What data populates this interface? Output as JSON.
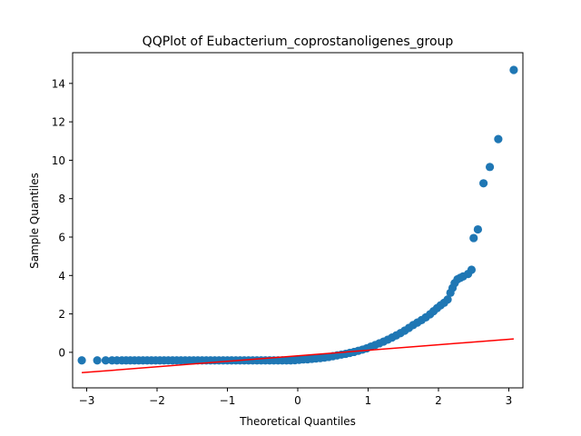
{
  "chart_data": {
    "type": "scatter",
    "title": "QQPlot of Eubacterium_coprostanoligenes_group",
    "xlabel": "Theoretical Quantiles",
    "ylabel": "Sample Quantiles",
    "xlim": [
      -3.2,
      3.2
    ],
    "ylim": [
      -1.85,
      15.6
    ],
    "xticks": [
      -3,
      -2,
      -1,
      0,
      1,
      2,
      3
    ],
    "xtick_labels": [
      "−3",
      "−2",
      "−1",
      "0",
      "1",
      "2",
      "3"
    ],
    "yticks": [
      0,
      2,
      4,
      6,
      8,
      10,
      12,
      14
    ],
    "ytick_labels": [
      "0",
      "2",
      "4",
      "6",
      "8",
      "10",
      "12",
      "14"
    ],
    "grid": false,
    "legend": "none",
    "marker_color": "#1f77b4",
    "line_color": "#ff0000",
    "series": [
      {
        "points": [
          [
            -3.07,
            -0.42
          ],
          [
            -2.85,
            -0.42
          ],
          [
            -2.73,
            -0.42
          ],
          [
            -2.64,
            -0.42
          ],
          [
            -2.57,
            -0.42
          ],
          [
            -2.5,
            -0.42
          ],
          [
            -2.44,
            -0.42
          ],
          [
            -2.38,
            -0.42
          ],
          [
            -2.32,
            -0.42
          ],
          [
            -2.26,
            -0.42
          ],
          [
            -2.2,
            -0.42
          ],
          [
            -2.14,
            -0.42
          ],
          [
            -2.08,
            -0.42
          ],
          [
            -2.02,
            -0.42
          ],
          [
            -1.96,
            -0.42
          ],
          [
            -1.9,
            -0.42
          ],
          [
            -1.84,
            -0.42
          ],
          [
            -1.78,
            -0.42
          ],
          [
            -1.72,
            -0.42
          ],
          [
            -1.66,
            -0.42
          ],
          [
            -1.6,
            -0.42
          ],
          [
            -1.54,
            -0.42
          ],
          [
            -1.48,
            -0.42
          ],
          [
            -1.42,
            -0.42
          ],
          [
            -1.36,
            -0.42
          ],
          [
            -1.3,
            -0.42
          ],
          [
            -1.24,
            -0.42
          ],
          [
            -1.18,
            -0.42
          ],
          [
            -1.12,
            -0.42
          ],
          [
            -1.06,
            -0.42
          ],
          [
            -1.0,
            -0.42
          ],
          [
            -0.94,
            -0.42
          ],
          [
            -0.88,
            -0.42
          ],
          [
            -0.82,
            -0.42
          ],
          [
            -0.76,
            -0.42
          ],
          [
            -0.7,
            -0.42
          ],
          [
            -0.64,
            -0.42
          ],
          [
            -0.58,
            -0.42
          ],
          [
            -0.52,
            -0.42
          ],
          [
            -0.46,
            -0.42
          ],
          [
            -0.4,
            -0.42
          ],
          [
            -0.34,
            -0.42
          ],
          [
            -0.28,
            -0.42
          ],
          [
            -0.22,
            -0.42
          ],
          [
            -0.16,
            -0.42
          ],
          [
            -0.1,
            -0.42
          ],
          [
            -0.04,
            -0.41
          ],
          [
            0.02,
            -0.39
          ],
          [
            0.08,
            -0.37
          ],
          [
            0.14,
            -0.36
          ],
          [
            0.2,
            -0.34
          ],
          [
            0.26,
            -0.32
          ],
          [
            0.32,
            -0.3
          ],
          [
            0.38,
            -0.27
          ],
          [
            0.44,
            -0.24
          ],
          [
            0.5,
            -0.2
          ],
          [
            0.56,
            -0.16
          ],
          [
            0.62,
            -0.12
          ],
          [
            0.68,
            -0.08
          ],
          [
            0.74,
            -0.03
          ],
          [
            0.8,
            0.02
          ],
          [
            0.86,
            0.08
          ],
          [
            0.92,
            0.14
          ],
          [
            0.98,
            0.21
          ],
          [
            1.04,
            0.3
          ],
          [
            1.1,
            0.38
          ],
          [
            1.16,
            0.47
          ],
          [
            1.22,
            0.56
          ],
          [
            1.28,
            0.66
          ],
          [
            1.34,
            0.77
          ],
          [
            1.4,
            0.88
          ],
          [
            1.46,
            1.0
          ],
          [
            1.52,
            1.13
          ],
          [
            1.58,
            1.27
          ],
          [
            1.64,
            1.42
          ],
          [
            1.7,
            1.55
          ],
          [
            1.76,
            1.68
          ],
          [
            1.82,
            1.82
          ],
          [
            1.88,
            1.98
          ],
          [
            1.93,
            2.14
          ],
          [
            1.98,
            2.3
          ],
          [
            2.03,
            2.45
          ],
          [
            2.08,
            2.58
          ],
          [
            2.13,
            2.75
          ],
          [
            2.17,
            3.1
          ],
          [
            2.2,
            3.35
          ],
          [
            2.23,
            3.6
          ],
          [
            2.27,
            3.8
          ],
          [
            2.31,
            3.88
          ],
          [
            2.35,
            3.95
          ],
          [
            2.42,
            4.08
          ],
          [
            2.47,
            4.3
          ],
          [
            2.5,
            5.95
          ],
          [
            2.56,
            6.4
          ],
          [
            2.64,
            8.8
          ],
          [
            2.73,
            9.65
          ],
          [
            2.85,
            11.1
          ],
          [
            3.07,
            14.7
          ]
        ]
      },
      {
        "type": "line",
        "points": [
          [
            -3.07,
            -1.06
          ],
          [
            3.07,
            0.7
          ]
        ]
      }
    ]
  }
}
